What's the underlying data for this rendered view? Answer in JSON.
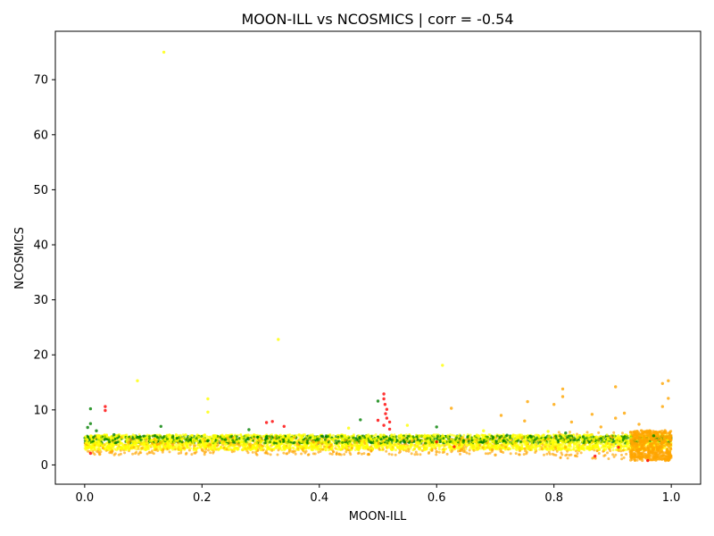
{
  "chart_data": {
    "type": "scatter",
    "title": "MOON-ILL vs NCOSMICS | corr = -0.54",
    "xlabel": "MOON-ILL",
    "ylabel": "NCOSMICS",
    "xlim": [
      -0.05,
      1.05
    ],
    "ylim": [
      -3.5,
      78.8
    ],
    "xticks": [
      0.0,
      0.2,
      0.4,
      0.6,
      0.8,
      1.0
    ],
    "xtick_labels": [
      "0.0",
      "0.2",
      "0.4",
      "0.6",
      "0.8",
      "1.0"
    ],
    "yticks": [
      0,
      10,
      20,
      30,
      40,
      50,
      60,
      70
    ],
    "ytick_labels": [
      "0",
      "10",
      "20",
      "30",
      "40",
      "50",
      "60",
      "70"
    ],
    "grid": false,
    "legend": "none",
    "series": [
      {
        "color": "#008000",
        "points": [
          [
            0.01,
            10.2
          ],
          [
            0.01,
            7.5
          ],
          [
            0.005,
            6.8
          ],
          [
            0.02,
            6.2
          ],
          [
            0.05,
            5.5
          ],
          [
            0.09,
            5.0
          ],
          [
            0.12,
            5.3
          ],
          [
            0.13,
            7.0
          ],
          [
            0.15,
            5.0
          ],
          [
            0.18,
            4.6
          ],
          [
            0.21,
            4.4
          ],
          [
            0.24,
            4.6
          ],
          [
            0.28,
            6.4
          ],
          [
            0.31,
            5.1
          ],
          [
            0.47,
            8.2
          ],
          [
            0.5,
            11.6
          ],
          [
            0.52,
            4.8
          ],
          [
            0.6,
            6.9
          ],
          [
            0.72,
            5.4
          ],
          [
            0.82,
            5.8
          ],
          [
            0.85,
            5.1
          ],
          [
            0.88,
            4.8
          ],
          [
            0.92,
            5.0
          ],
          [
            0.97,
            5.3
          ]
        ]
      },
      {
        "color": "#ffff00",
        "points": [
          [
            0.135,
            75.0
          ],
          [
            0.33,
            22.8
          ],
          [
            0.61,
            18.1
          ],
          [
            0.09,
            15.3
          ],
          [
            0.21,
            12.0
          ],
          [
            0.21,
            9.6
          ],
          [
            0.55,
            7.2
          ],
          [
            0.45,
            6.7
          ],
          [
            0.68,
            6.2
          ],
          [
            0.79,
            6.1
          ]
        ]
      },
      {
        "color": "#ffa500",
        "points": [
          [
            0.995,
            15.3
          ],
          [
            0.985,
            14.8
          ],
          [
            0.905,
            14.2
          ],
          [
            0.815,
            13.8
          ],
          [
            0.815,
            12.4
          ],
          [
            0.995,
            12.1
          ],
          [
            0.755,
            11.5
          ],
          [
            0.8,
            11.0
          ],
          [
            0.985,
            10.6
          ],
          [
            0.625,
            10.3
          ],
          [
            0.92,
            9.4
          ],
          [
            0.865,
            9.2
          ],
          [
            0.71,
            9.0
          ],
          [
            0.905,
            8.5
          ],
          [
            0.75,
            8.0
          ],
          [
            0.83,
            7.8
          ],
          [
            0.945,
            7.4
          ],
          [
            0.88,
            6.9
          ],
          [
            0.39,
            4.2
          ],
          [
            0.42,
            3.6
          ],
          [
            0.6,
            2.4
          ],
          [
            0.7,
            1.8
          ],
          [
            0.95,
            1.2
          ],
          [
            0.99,
            0.8
          ]
        ]
      },
      {
        "color": "#ff0000",
        "points": [
          [
            0.035,
            10.6
          ],
          [
            0.035,
            9.9
          ],
          [
            0.51,
            12.9
          ],
          [
            0.51,
            12.0
          ],
          [
            0.512,
            11.0
          ],
          [
            0.515,
            10.1
          ],
          [
            0.513,
            9.3
          ],
          [
            0.515,
            8.5
          ],
          [
            0.5,
            8.1
          ],
          [
            0.52,
            7.8
          ],
          [
            0.51,
            7.2
          ],
          [
            0.52,
            6.5
          ],
          [
            0.31,
            7.7
          ],
          [
            0.32,
            7.9
          ],
          [
            0.34,
            7.0
          ],
          [
            0.01,
            2.1
          ],
          [
            0.6,
            4.2
          ],
          [
            0.63,
            3.3
          ],
          [
            0.91,
            3.2
          ],
          [
            0.87,
            1.6
          ],
          [
            0.96,
            0.8
          ]
        ]
      }
    ],
    "dense_band": {
      "x_range": [
        0.0,
        1.0
      ],
      "y_center": 4.1,
      "y_spread": 1.4,
      "colors": [
        "#008000",
        "#ffff00",
        "#ffa500"
      ]
    }
  }
}
